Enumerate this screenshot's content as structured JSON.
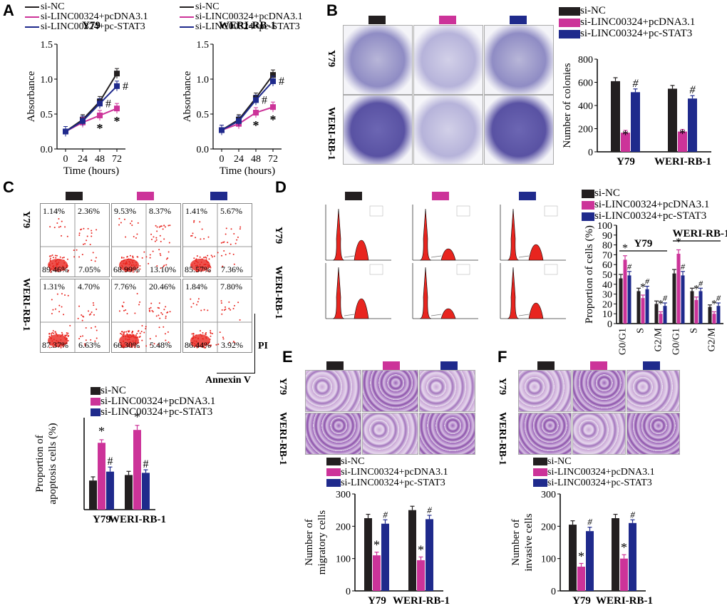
{
  "colors": {
    "nc": "#231f20",
    "pcdna": "#cc3399",
    "stat3": "#1f2a8c"
  },
  "legend": [
    "si-NC",
    "si-LINC00324+pcDNA3.1",
    "si-LINC00324+pc-STAT3"
  ],
  "panel_labels": [
    "A",
    "B",
    "C",
    "D",
    "E",
    "F"
  ],
  "panelA": {
    "cell_lines": [
      "Y79",
      "WERI-RB-1"
    ],
    "stars": [
      "*",
      "*"
    ],
    "hashes": [
      "#",
      "#"
    ]
  },
  "panelB": {
    "rows": [
      "Y79",
      "WERI-RB-1"
    ]
  },
  "panelC": {
    "rows": [
      "Y79",
      "WERI-RB-1"
    ],
    "quadrants": [
      [
        "1.14%",
        "2.36%",
        "89.46%",
        "7.05%"
      ],
      [
        "9.53%",
        "8.37%",
        "68.99%",
        "13.10%"
      ],
      [
        "1.41%",
        "5.67%",
        "85.57%",
        "7.36%"
      ],
      [
        "1.31%",
        "4.70%",
        "87.37%",
        "6.63%"
      ],
      [
        "7.76%",
        "20.46%",
        "66.30%",
        "5.48%"
      ],
      [
        "1.84%",
        "7.80%",
        "86.44%",
        "3.92%"
      ]
    ],
    "axis_pi": "PI",
    "axis_annexin": "Annexin V"
  },
  "panelD": {
    "rows": [
      "Y79",
      "WERI-RB-1"
    ]
  },
  "panelE": {
    "rows": [
      "Y79",
      "WERI-RB-1"
    ]
  },
  "panelF": {
    "rows": [
      "Y79",
      "WERI-RB-1"
    ]
  },
  "chart_data": [
    {
      "id": "A1",
      "type": "line",
      "title": "Y79",
      "xlabel": "Time (hours)",
      "ylabel": "Absorbance",
      "x": [
        0,
        24,
        48,
        72
      ],
      "ylim": [
        0,
        1.5
      ],
      "yticks": [
        0.0,
        0.5,
        1.0,
        1.5
      ],
      "series": [
        {
          "name": "si-NC",
          "values": [
            0.25,
            0.42,
            0.68,
            1.08
          ]
        },
        {
          "name": "si-LINC00324+pcDNA3.1",
          "values": [
            0.25,
            0.38,
            0.48,
            0.58
          ]
        },
        {
          "name": "si-LINC00324+pc-STAT3",
          "values": [
            0.25,
            0.4,
            0.65,
            0.9
          ]
        }
      ]
    },
    {
      "id": "A2",
      "type": "line",
      "title": "WERI-RB-1",
      "xlabel": "Time (hours)",
      "ylabel": "Absorbance",
      "x": [
        0,
        24,
        48,
        72
      ],
      "ylim": [
        0,
        1.5
      ],
      "yticks": [
        0.0,
        0.5,
        1.0,
        1.5
      ],
      "series": [
        {
          "name": "si-NC",
          "values": [
            0.27,
            0.42,
            0.73,
            1.06
          ]
        },
        {
          "name": "si-LINC00324+pcDNA3.1",
          "values": [
            0.27,
            0.36,
            0.52,
            0.6
          ]
        },
        {
          "name": "si-LINC00324+pc-STAT3",
          "values": [
            0.27,
            0.4,
            0.7,
            0.97
          ]
        }
      ]
    },
    {
      "id": "B",
      "type": "bar",
      "ylabel": "Number of colonies",
      "categories": [
        "Y79",
        "WERI-RB-1"
      ],
      "ylim": [
        0,
        800
      ],
      "yticks": [
        0,
        200,
        400,
        600,
        800
      ],
      "series": [
        {
          "name": "si-NC",
          "values": [
            610,
            545
          ]
        },
        {
          "name": "si-LINC00324+pcDNA3.1",
          "values": [
            165,
            175
          ]
        },
        {
          "name": "si-LINC00324+pc-STAT3",
          "values": [
            515,
            460
          ]
        }
      ],
      "errors": [
        [
          30,
          28
        ],
        [
          20,
          18
        ],
        [
          28,
          25
        ]
      ]
    },
    {
      "id": "C",
      "type": "bar",
      "ylabel": "Proportion of apoptosis cells (%)",
      "categories": [
        "Y79",
        "WERI-RB-1"
      ],
      "ylim": [
        0,
        30
      ],
      "yticks": [],
      "series": [
        {
          "name": "si-NC",
          "values": [
            9.5,
            11.3
          ]
        },
        {
          "name": "si-LINC00324+pcDNA3.1",
          "values": [
            21.8,
            26.0
          ]
        },
        {
          "name": "si-LINC00324+pc-STAT3",
          "values": [
            12.4,
            12.0
          ]
        }
      ],
      "errors": [
        [
          1.2,
          1.2
        ],
        [
          1.0,
          1.5
        ],
        [
          1.5,
          1.0
        ]
      ]
    },
    {
      "id": "D",
      "type": "bar",
      "ylabel": "Proportion of cells (%)",
      "group_labels": [
        "Y79",
        "WERI-RB-1"
      ],
      "categories": [
        "G0/G1",
        "S",
        "G2/M",
        "G0/G1",
        "S",
        "G2/M"
      ],
      "ylim": [
        0,
        100
      ],
      "yticks": [
        0,
        10,
        20,
        30,
        40,
        50,
        60,
        70,
        80,
        90,
        100
      ],
      "series": [
        {
          "name": "si-NC",
          "values": [
            46,
            33,
            20,
            51,
            33,
            17
          ]
        },
        {
          "name": "si-LINC00324+pcDNA3.1",
          "values": [
            65,
            26,
            10,
            71,
            24,
            10
          ]
        },
        {
          "name": "si-LINC00324+pc-STAT3",
          "values": [
            49,
            35,
            18,
            49,
            33,
            18
          ]
        }
      ],
      "errors": [
        [
          4,
          3,
          3,
          4,
          3,
          2
        ],
        [
          4,
          3,
          2,
          4,
          3,
          2
        ],
        [
          4,
          3,
          3,
          4,
          3,
          3
        ]
      ]
    },
    {
      "id": "E",
      "type": "bar",
      "ylabel": "Number of migratory cells",
      "categories": [
        "Y79",
        "WERI-RB-1"
      ],
      "ylim": [
        0,
        300
      ],
      "yticks": [
        0,
        100,
        200,
        300
      ],
      "series": [
        {
          "name": "si-NC",
          "values": [
            225,
            250
          ]
        },
        {
          "name": "si-LINC00324+pcDNA3.1",
          "values": [
            110,
            95
          ]
        },
        {
          "name": "si-LINC00324+pc-STAT3",
          "values": [
            208,
            222
          ]
        }
      ],
      "errors": [
        [
          12,
          12
        ],
        [
          10,
          10
        ],
        [
          12,
          12
        ]
      ]
    },
    {
      "id": "F",
      "type": "bar",
      "ylabel": "Number of invasive cells",
      "categories": [
        "Y79",
        "WERI-RB-1"
      ],
      "ylim": [
        0,
        300
      ],
      "yticks": [
        0,
        100,
        200,
        300
      ],
      "series": [
        {
          "name": "si-NC",
          "values": [
            205,
            225
          ]
        },
        {
          "name": "si-LINC00324+pcDNA3.1",
          "values": [
            75,
            100
          ]
        },
        {
          "name": "si-LINC00324+pc-STAT3",
          "values": [
            185,
            210
          ]
        }
      ],
      "errors": [
        [
          12,
          12
        ],
        [
          10,
          12
        ],
        [
          12,
          10
        ]
      ]
    }
  ]
}
